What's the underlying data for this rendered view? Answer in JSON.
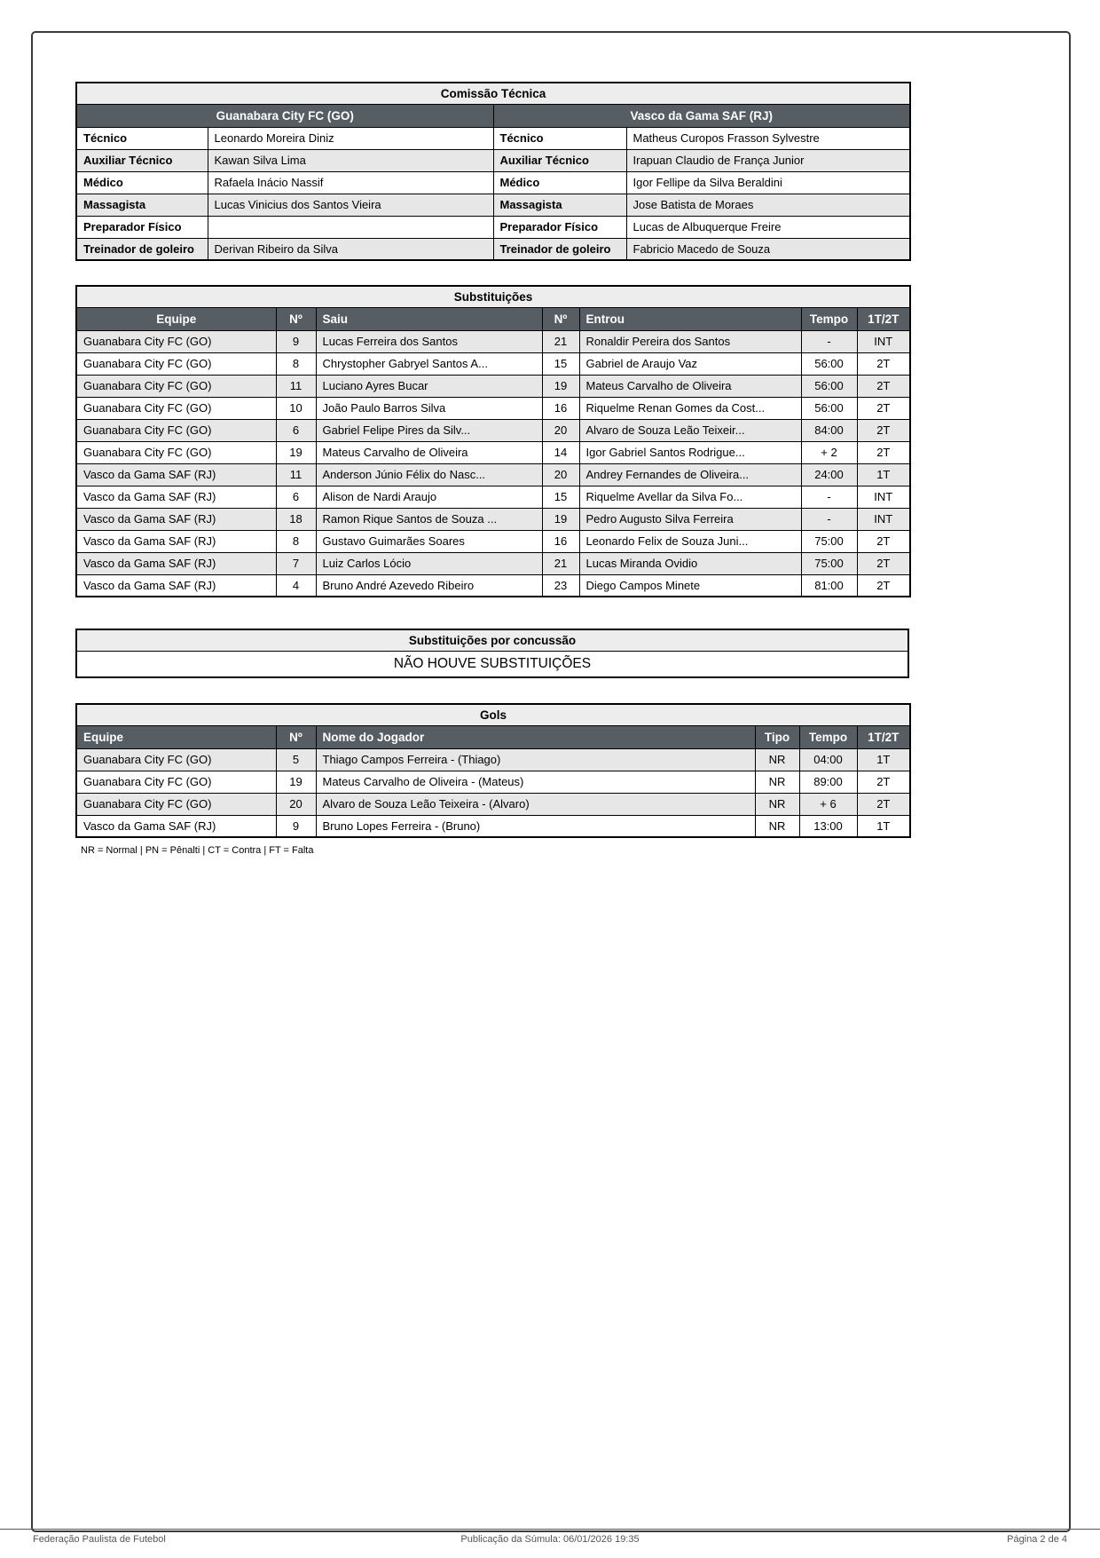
{
  "comissao_tecnica": {
    "title": "Comissão Técnica",
    "team_left": "Guanabara City FC (GO)",
    "team_right": "Vasco da Gama SAF (RJ)",
    "rows": [
      [
        "Técnico",
        "Leonardo Moreira Diniz",
        "Técnico",
        "Matheus Curopos Frasson Sylvestre"
      ],
      [
        "Auxiliar Técnico",
        "Kawan Silva Lima",
        "Auxiliar Técnico",
        "Irapuan Claudio de França Junior"
      ],
      [
        "Médico",
        "Rafaela Inácio Nassif",
        "Médico",
        "Igor Fellipe da Silva Beraldini"
      ],
      [
        "Massagista",
        "Lucas Vinicius dos Santos Vieira",
        "Massagista",
        "Jose Batista de Moraes"
      ],
      [
        "Preparador Físico",
        "",
        "Preparador Físico",
        "Lucas de Albuquerque Freire"
      ],
      [
        "Treinador de goleiro",
        "Derivan Ribeiro da Silva",
        "Treinador de goleiro",
        "Fabricio Macedo de Souza"
      ]
    ]
  },
  "substituicoes": {
    "title": "Substituições",
    "headers": [
      "Equipe",
      "Nº",
      "Saiu",
      "Nº",
      "Entrou",
      "Tempo",
      "1T/2T"
    ],
    "rows": [
      [
        "Guanabara City FC (GO)",
        "9",
        "Lucas Ferreira dos Santos",
        "21",
        "Ronaldir Pereira dos Santos",
        "-",
        "INT"
      ],
      [
        "Guanabara City FC (GO)",
        "8",
        "Chrystopher Gabryel Santos A...",
        "15",
        "Gabriel de Araujo Vaz",
        "56:00",
        "2T"
      ],
      [
        "Guanabara City FC (GO)",
        "11",
        "Luciano Ayres Bucar",
        "19",
        "Mateus Carvalho de Oliveira",
        "56:00",
        "2T"
      ],
      [
        "Guanabara City FC (GO)",
        "10",
        "João Paulo Barros Silva",
        "16",
        "Riquelme Renan Gomes da Cost...",
        "56:00",
        "2T"
      ],
      [
        "Guanabara City FC (GO)",
        "6",
        "Gabriel Felipe Pires da Silv...",
        "20",
        "Alvaro de Souza Leão Teixeir...",
        "84:00",
        "2T"
      ],
      [
        "Guanabara City FC (GO)",
        "19",
        "Mateus Carvalho de Oliveira",
        "14",
        "Igor Gabriel Santos Rodrigue...",
        "+ 2",
        "2T"
      ],
      [
        "Vasco da Gama SAF (RJ)",
        "11",
        "Anderson Júnio Félix do Nasc...",
        "20",
        "Andrey Fernandes de Oliveira...",
        "24:00",
        "1T"
      ],
      [
        "Vasco da Gama SAF (RJ)",
        "6",
        "Alison de Nardi Araujo",
        "15",
        "Riquelme Avellar da Silva Fo...",
        "-",
        "INT"
      ],
      [
        "Vasco da Gama SAF (RJ)",
        "18",
        "Ramon Rique Santos de Souza ...",
        "19",
        "Pedro Augusto Silva Ferreira",
        "-",
        "INT"
      ],
      [
        "Vasco da Gama SAF (RJ)",
        "8",
        "Gustavo Guimarães Soares",
        "16",
        "Leonardo Felix de Souza Juni...",
        "75:00",
        "2T"
      ],
      [
        "Vasco da Gama SAF (RJ)",
        "7",
        "Luiz Carlos Lócio",
        "21",
        "Lucas Miranda Ovidio",
        "75:00",
        "2T"
      ],
      [
        "Vasco da Gama SAF (RJ)",
        "4",
        "Bruno André Azevedo Ribeiro",
        "23",
        "Diego Campos Minete",
        "81:00",
        "2T"
      ]
    ]
  },
  "concussao": {
    "title": "Substituições por concussão",
    "content": "NÃO HOUVE SUBSTITUIÇÕES"
  },
  "gols": {
    "title": "Gols",
    "headers": [
      "Equipe",
      "Nº",
      "Nome do Jogador",
      "Tipo",
      "Tempo",
      "1T/2T"
    ],
    "rows": [
      [
        "Guanabara City FC (GO)",
        "5",
        "Thiago Campos Ferreira - (Thiago)",
        "NR",
        "04:00",
        "1T"
      ],
      [
        "Guanabara City FC (GO)",
        "19",
        "Mateus Carvalho de Oliveira - (Mateus)",
        "NR",
        "89:00",
        "2T"
      ],
      [
        "Guanabara City FC (GO)",
        "20",
        "Alvaro de Souza Leão Teixeira - (Alvaro)",
        "NR",
        "+ 6",
        "2T"
      ],
      [
        "Vasco da Gama SAF (RJ)",
        "9",
        "Bruno Lopes Ferreira - (Bruno)",
        "NR",
        "13:00",
        "1T"
      ]
    ],
    "legend": "NR = Normal | PN = Pênalti | CT = Contra | FT = Falta"
  },
  "footer": {
    "left": "Federação Paulista de Futebol",
    "center": "Publicação da Súmula: 06/01/2026 19:35",
    "right": "Página 2 de 4"
  }
}
